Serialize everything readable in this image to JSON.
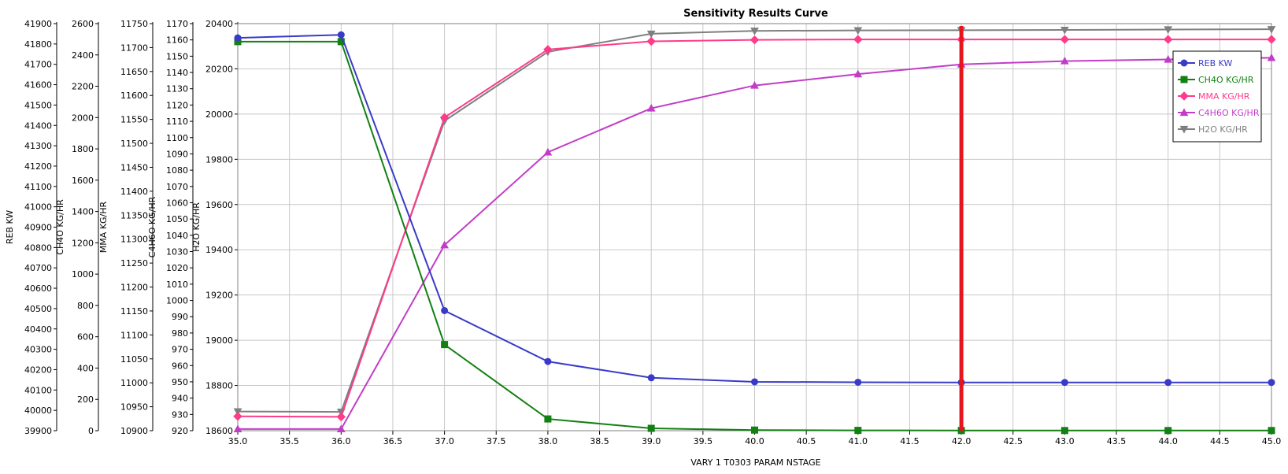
{
  "chart_data": {
    "type": "line",
    "title": "Sensitivity Results Curve",
    "xlabel": "VARY   1 T0303 PARAM NSTAGE",
    "xlim": [
      35,
      45
    ],
    "xticks": [
      35.0,
      35.5,
      36.0,
      36.5,
      37.0,
      37.5,
      38.0,
      38.5,
      39.0,
      39.5,
      40.0,
      40.5,
      41.0,
      41.5,
      42.0,
      42.5,
      43.0,
      43.5,
      44.0,
      44.5,
      45.0
    ],
    "x": [
      35,
      36,
      37,
      38,
      39,
      40,
      41,
      42,
      43,
      44,
      45
    ],
    "grid": true,
    "legend_position": "top-right",
    "marker_x": 42.0,
    "marker_color": "#e8141c",
    "y_axes": [
      {
        "id": "reb",
        "label": "REB KW",
        "min": 39900,
        "max": 41900,
        "step": 100
      },
      {
        "id": "ch4o",
        "label": "CH4O KG/HR",
        "min": 0,
        "max": 2600,
        "step": 200
      },
      {
        "id": "mma",
        "label": "MMA KG/HR",
        "min": 10900,
        "max": 11750,
        "step": 50
      },
      {
        "id": "c4h6o",
        "label": "C4H6O KG/HR",
        "min": 920,
        "max": 1170,
        "step": 10
      },
      {
        "id": "h2o",
        "label": "H2O KG/HR",
        "min": 18600,
        "max": 20400,
        "step": 200
      }
    ],
    "series": [
      {
        "name": "REB KW",
        "axis": "reb",
        "color": "#3a3ac8",
        "marker": "circle",
        "values": [
          41830,
          41845,
          40490,
          40240,
          40160,
          40140,
          40138,
          40137,
          40137,
          40137,
          40137
        ]
      },
      {
        "name": "CH4O KG/HR",
        "axis": "ch4o",
        "color": "#128012",
        "marker": "square",
        "values": [
          2485,
          2485,
          550,
          75,
          15,
          4,
          2,
          1,
          1,
          1,
          1
        ]
      },
      {
        "name": "MMA KG/HR",
        "axis": "mma",
        "color": "#ff3b8a",
        "marker": "diamond",
        "values": [
          10930,
          10929,
          11554,
          11696,
          11713,
          11716,
          11717,
          11717,
          11717,
          11717,
          11717
        ]
      },
      {
        "name": "C4H6O KG/HR",
        "axis": "c4h6o",
        "color": "#c23cc8",
        "marker": "triangle-up",
        "values": [
          921,
          921,
          1034,
          1091,
          1118,
          1132,
          1139,
          1145,
          1147,
          1148,
          1149
        ]
      },
      {
        "name": "H2O KG/HR",
        "axis": "h2o",
        "color": "#7f7f7f",
        "marker": "triangle-down",
        "values": [
          18685,
          18683,
          19970,
          20275,
          20355,
          20368,
          20370,
          20371,
          20372,
          20374,
          20375
        ]
      }
    ]
  }
}
